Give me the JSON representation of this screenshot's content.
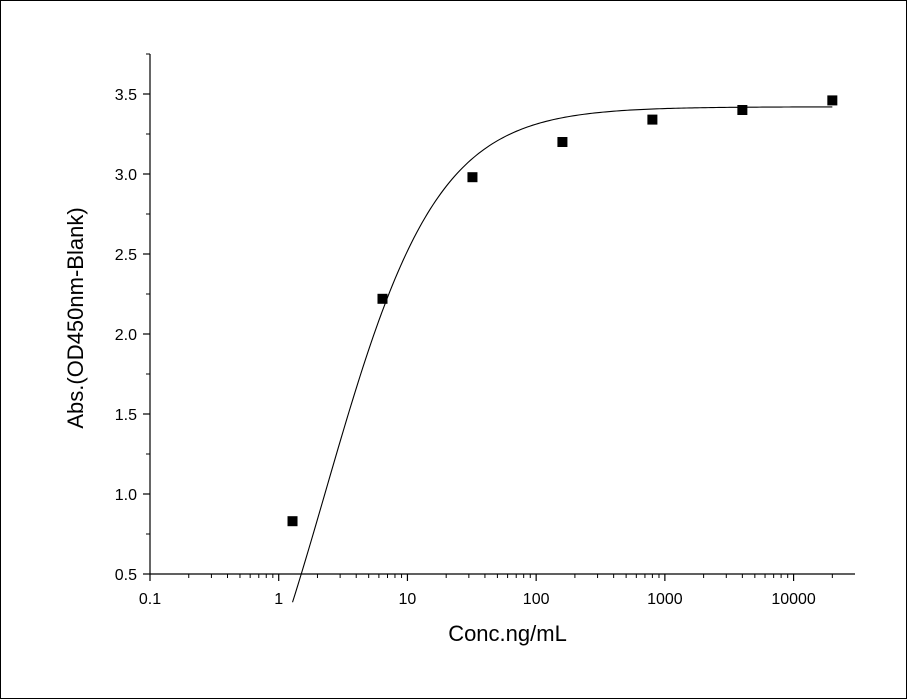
{
  "chart_data": {
    "type": "scatter",
    "title": "",
    "xlabel": "Conc.ng/mL",
    "ylabel": "Abs.(OD450nm-Blank)",
    "x_scale": "log",
    "xlim": [
      0.1,
      30000
    ],
    "ylim": [
      0.5,
      3.75
    ],
    "grid": false,
    "x_ticks": [
      0.1,
      1,
      10,
      100,
      1000,
      10000
    ],
    "x_tick_labels": [
      "0.1",
      "1",
      "10",
      "100",
      "1000",
      "10000"
    ],
    "y_ticks": [
      0.5,
      1.0,
      1.5,
      2.0,
      2.5,
      3.0,
      3.5
    ],
    "y_tick_labels": [
      "0.5",
      "1.0",
      "1.5",
      "2.0",
      "2.5",
      "3.0",
      "3.5"
    ],
    "series": [
      {
        "marker": "square",
        "color": "#000000",
        "points": [
          {
            "x": 1.28,
            "y": 0.83
          },
          {
            "x": 6.4,
            "y": 2.22
          },
          {
            "x": 32,
            "y": 2.98
          },
          {
            "x": 160,
            "y": 3.2
          },
          {
            "x": 800,
            "y": 3.34
          },
          {
            "x": 4000,
            "y": 3.4
          },
          {
            "x": 20000,
            "y": 3.46
          }
        ]
      }
    ],
    "fit_curve": {
      "type": "four-parameter-logistic",
      "color": "#000000",
      "x_range": [
        1.28,
        20000
      ],
      "bottom": -1.4,
      "top": 3.42,
      "ec50": 2.3,
      "hill": 1.0
    }
  }
}
